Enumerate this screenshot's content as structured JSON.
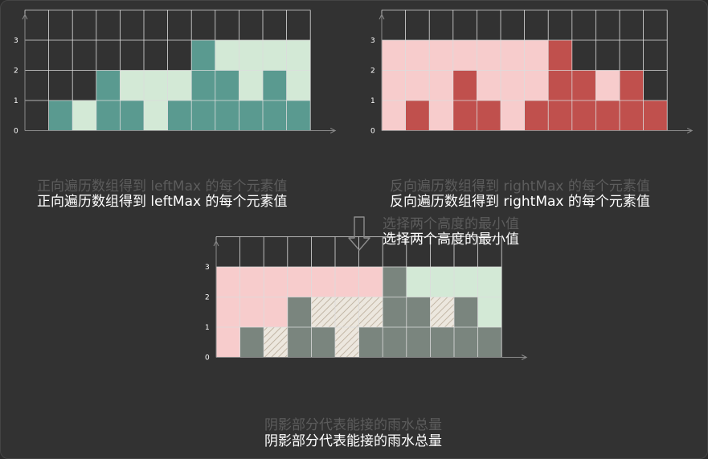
{
  "colors": {
    "background": "#323232",
    "grid": "#dcdcdc",
    "axis": "#8a8a8a",
    "left_bar": "#5a9a90",
    "left_fill": "#d3e9d6",
    "right_bar": "#c0504d",
    "right_fill": "#f7cccc",
    "min_bar": "#7a857e",
    "pink_bg": "#f7cccc"
  },
  "captions": {
    "left": "正向遍历数组得到 leftMax 的每个元素值",
    "right": "反向遍历数组得到 rightMax 的每个元素值",
    "middle": "选择两个高度的最小值",
    "bottom": "阴影部分代表能接的雨水总量"
  },
  "chart_data": [
    {
      "type": "bar",
      "name": "leftMax",
      "yticks": [
        "0",
        "1",
        "2",
        "3"
      ],
      "ylim": [
        0,
        4
      ],
      "x": [
        0,
        1,
        2,
        3,
        4,
        5,
        6,
        7,
        8,
        9,
        10,
        11
      ],
      "height": [
        0,
        1,
        0,
        2,
        1,
        0,
        1,
        3,
        2,
        1,
        2,
        1
      ],
      "leftMax": [
        0,
        1,
        1,
        2,
        2,
        2,
        2,
        3,
        3,
        3,
        3,
        3
      ]
    },
    {
      "type": "bar",
      "name": "rightMax",
      "yticks": [
        "0",
        "1",
        "2",
        "3"
      ],
      "ylim": [
        0,
        4
      ],
      "x": [
        0,
        1,
        2,
        3,
        4,
        5,
        6,
        7,
        8,
        9,
        10,
        11
      ],
      "height": [
        0,
        1,
        0,
        2,
        1,
        0,
        1,
        3,
        2,
        1,
        2,
        1
      ],
      "rightMax": [
        3,
        3,
        3,
        3,
        3,
        3,
        3,
        3,
        2,
        2,
        2,
        1
      ]
    },
    {
      "type": "bar",
      "name": "water",
      "yticks": [
        "0",
        "1",
        "2",
        "3"
      ],
      "ylim": [
        0,
        4
      ],
      "x": [
        0,
        1,
        2,
        3,
        4,
        5,
        6,
        7,
        8,
        9,
        10,
        11
      ],
      "height": [
        0,
        1,
        0,
        2,
        1,
        0,
        1,
        3,
        2,
        1,
        2,
        1
      ],
      "leftMax": [
        0,
        1,
        1,
        2,
        2,
        2,
        2,
        3,
        3,
        3,
        3,
        3
      ],
      "rightMax": [
        3,
        3,
        3,
        3,
        3,
        3,
        3,
        3,
        2,
        2,
        2,
        1
      ],
      "minMax": [
        0,
        1,
        1,
        2,
        2,
        2,
        2,
        3,
        2,
        2,
        2,
        1
      ]
    }
  ]
}
